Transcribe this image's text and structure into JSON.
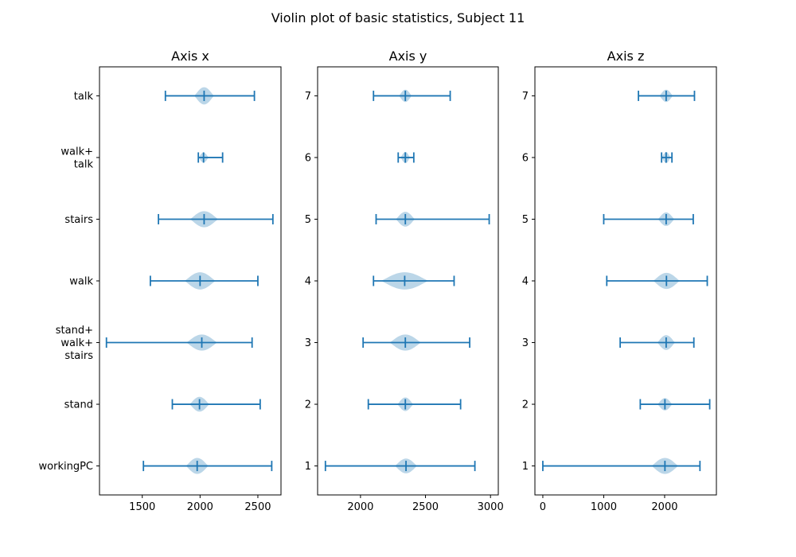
{
  "figure": {
    "title": "Violin plot of basic statistics, Subject 11"
  },
  "chart_data": [
    {
      "type": "violin",
      "title": "Axis x",
      "orientation": "horizontal",
      "xlim": [
        1130,
        2700
      ],
      "xticks": [
        1500,
        2000,
        2500
      ],
      "ylim": [
        0.53,
        7.47
      ],
      "positions": [
        1,
        2,
        3,
        4,
        5,
        6,
        7
      ],
      "ytick_labels": [
        [
          "workingPC"
        ],
        [
          "stand"
        ],
        [
          "stand+",
          "walk+",
          "stairs"
        ],
        [
          "walk"
        ],
        [
          "stairs"
        ],
        [
          "walk+",
          "talk"
        ],
        [
          "talk"
        ]
      ],
      "series": [
        {
          "min": 1510,
          "max": 2620,
          "median": 1975,
          "spread": 40,
          "width": 0.13
        },
        {
          "min": 1760,
          "max": 2520,
          "median": 1995,
          "spread": 35,
          "width": 0.12
        },
        {
          "min": 1190,
          "max": 2450,
          "median": 2015,
          "spread": 55,
          "width": 0.13
        },
        {
          "min": 1570,
          "max": 2500,
          "median": 2000,
          "spread": 55,
          "width": 0.14
        },
        {
          "min": 1640,
          "max": 2630,
          "median": 2035,
          "spread": 50,
          "width": 0.13
        },
        {
          "min": 1985,
          "max": 2195,
          "median": 2030,
          "spread": 18,
          "width": 0.08
        },
        {
          "min": 1700,
          "max": 2470,
          "median": 2035,
          "spread": 35,
          "width": 0.14
        }
      ]
    },
    {
      "type": "violin",
      "title": "Axis y",
      "orientation": "horizontal",
      "xlim": [
        1670,
        3060
      ],
      "xticks": [
        2000,
        2500,
        3000
      ],
      "ylim": [
        0.53,
        7.47
      ],
      "positions": [
        1,
        2,
        3,
        4,
        5,
        6,
        7
      ],
      "ytick_labels": [
        [
          "1"
        ],
        [
          "2"
        ],
        [
          "3"
        ],
        [
          "4"
        ],
        [
          "5"
        ],
        [
          "6"
        ],
        [
          "7"
        ]
      ],
      "series": [
        {
          "min": 1730,
          "max": 2880,
          "median": 2350,
          "spread": 35,
          "width": 0.12
        },
        {
          "min": 2060,
          "max": 2770,
          "median": 2345,
          "spread": 25,
          "width": 0.11
        },
        {
          "min": 2020,
          "max": 2840,
          "median": 2345,
          "spread": 50,
          "width": 0.13
        },
        {
          "min": 2100,
          "max": 2720,
          "median": 2340,
          "spread": 75,
          "width": 0.14
        },
        {
          "min": 2120,
          "max": 2990,
          "median": 2345,
          "spread": 30,
          "width": 0.12
        },
        {
          "min": 2290,
          "max": 2410,
          "median": 2345,
          "spread": 15,
          "width": 0.09
        },
        {
          "min": 2100,
          "max": 2690,
          "median": 2345,
          "spread": 20,
          "width": 0.1
        }
      ]
    },
    {
      "type": "violin",
      "title": "Axis z",
      "orientation": "horizontal",
      "xlim": [
        -130,
        2850
      ],
      "xticks": [
        0,
        1000,
        2000
      ],
      "ylim": [
        0.53,
        7.47
      ],
      "positions": [
        1,
        2,
        3,
        4,
        5,
        6,
        7
      ],
      "ytick_labels": [
        [
          "1"
        ],
        [
          "2"
        ],
        [
          "3"
        ],
        [
          "4"
        ],
        [
          "5"
        ],
        [
          "6"
        ],
        [
          "7"
        ]
      ],
      "series": [
        {
          "min": 0,
          "max": 2580,
          "median": 2005,
          "spread": 90,
          "width": 0.13
        },
        {
          "min": 1600,
          "max": 2740,
          "median": 2005,
          "spread": 50,
          "width": 0.1
        },
        {
          "min": 1270,
          "max": 2480,
          "median": 2025,
          "spread": 60,
          "width": 0.12
        },
        {
          "min": 1050,
          "max": 2700,
          "median": 2030,
          "spread": 90,
          "width": 0.13
        },
        {
          "min": 1000,
          "max": 2470,
          "median": 2025,
          "spread": 55,
          "width": 0.11
        },
        {
          "min": 1950,
          "max": 2120,
          "median": 2025,
          "spread": 30,
          "width": 0.09
        },
        {
          "min": 1570,
          "max": 2490,
          "median": 2025,
          "spread": 45,
          "width": 0.1
        }
      ]
    }
  ],
  "colors": {
    "line": "#1f77b4",
    "body": "#1f77b4",
    "frame": "#000000",
    "background": "#ffffff"
  }
}
